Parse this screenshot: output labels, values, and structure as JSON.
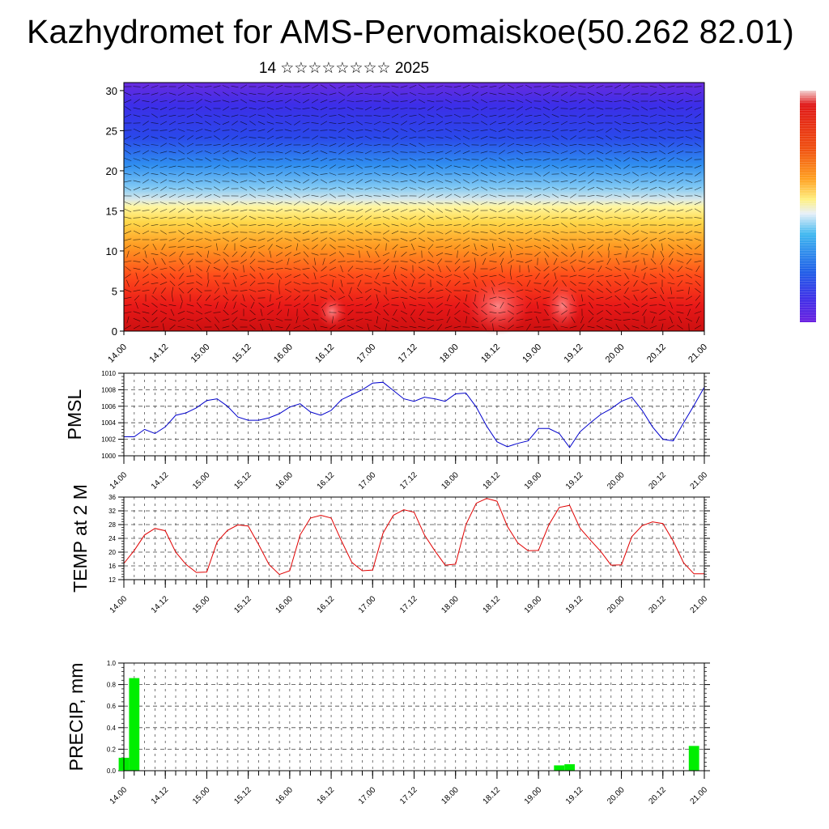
{
  "title": "Kazhydromet for AMS-Pervomaiskoe(50.262 82.01)",
  "subtitle": "14 ☆☆☆☆☆☆☆☆ 2025",
  "time_labels": [
    "14.00",
    "14.12",
    "15.00",
    "15.12",
    "16.00",
    "16.12",
    "17.00",
    "17.12",
    "18.00",
    "18.12",
    "19.00",
    "19.12",
    "20.00",
    "20.12",
    "21.00"
  ],
  "chart_data": [
    {
      "type": "heatmap",
      "title": "",
      "xlabel": "",
      "ylabel": "",
      "x": [
        "14.00",
        "14.12",
        "15.00",
        "15.12",
        "16.00",
        "16.12",
        "17.00",
        "17.12",
        "18.00",
        "18.12",
        "19.00",
        "19.12",
        "20.00",
        "20.12",
        "21.00"
      ],
      "ylim": [
        0,
        31
      ],
      "yticks": [
        0,
        5,
        10,
        15,
        20,
        25,
        30
      ],
      "overlay": "wind barbs",
      "colorbar": "blue (top) to yellow to red (bottom)",
      "grid": false
    },
    {
      "type": "line",
      "ylabel": "PMSL",
      "color": "#0000cc",
      "ylim": [
        1000,
        1010
      ],
      "yticks": [
        1000,
        1002,
        1004,
        1006,
        1008,
        1010
      ],
      "x": [
        "14.00",
        "14.03",
        "14.06",
        "14.09",
        "14.12",
        "14.15",
        "14.18",
        "14.21",
        "15.00",
        "15.03",
        "15.06",
        "15.09",
        "15.12",
        "15.15",
        "15.18",
        "15.21",
        "16.00",
        "16.03",
        "16.06",
        "16.09",
        "16.12",
        "16.15",
        "16.18",
        "16.21",
        "17.00",
        "17.03",
        "17.06",
        "17.09",
        "17.12",
        "17.15",
        "17.18",
        "17.21",
        "18.00",
        "18.03",
        "18.06",
        "18.09",
        "18.12",
        "18.15",
        "18.18",
        "18.21",
        "19.00",
        "19.03",
        "19.06",
        "19.09",
        "19.12",
        "19.15",
        "19.18",
        "19.21",
        "20.00",
        "20.03",
        "20.06",
        "20.09",
        "20.12",
        "20.15",
        "20.18",
        "20.21",
        "21.00"
      ],
      "values": [
        1002.3,
        1002.3,
        1003.2,
        1002.7,
        1003.5,
        1004.9,
        1005.2,
        1005.8,
        1006.7,
        1006.9,
        1006.0,
        1004.7,
        1004.3,
        1004.3,
        1004.6,
        1005.1,
        1005.9,
        1006.3,
        1005.3,
        1004.9,
        1005.5,
        1006.8,
        1007.4,
        1008.0,
        1008.8,
        1008.9,
        1007.9,
        1006.9,
        1006.6,
        1007.1,
        1006.9,
        1006.6,
        1007.5,
        1007.6,
        1005.9,
        1003.6,
        1001.7,
        1001.1,
        1001.5,
        1001.8,
        1003.3,
        1003.3,
        1002.7,
        1001.0,
        1002.9,
        1004.0,
        1005.0,
        1005.7,
        1006.6,
        1007.1,
        1005.5,
        1003.5,
        1002.0,
        1001.8,
        1004.0,
        1006.1,
        1008.3
      ]
    },
    {
      "type": "line",
      "ylabel": "TEMP at 2 M",
      "color": "#e00000",
      "ylim": [
        12,
        36
      ],
      "yticks": [
        12,
        16,
        20,
        24,
        28,
        32,
        36
      ],
      "x": [
        "14.00",
        "14.03",
        "14.06",
        "14.09",
        "14.12",
        "14.15",
        "14.18",
        "14.21",
        "15.00",
        "15.03",
        "15.06",
        "15.09",
        "15.12",
        "15.15",
        "15.18",
        "15.21",
        "16.00",
        "16.03",
        "16.06",
        "16.09",
        "16.12",
        "16.15",
        "16.18",
        "16.21",
        "17.00",
        "17.03",
        "17.06",
        "17.09",
        "17.12",
        "17.15",
        "17.18",
        "17.21",
        "18.00",
        "18.03",
        "18.06",
        "18.09",
        "18.12",
        "18.15",
        "18.18",
        "18.21",
        "19.00",
        "19.03",
        "19.06",
        "19.09",
        "19.12",
        "19.15",
        "19.18",
        "19.21",
        "20.00",
        "20.03",
        "20.06",
        "20.09",
        "20.12",
        "20.15",
        "20.18",
        "20.21",
        "21.00"
      ],
      "values": [
        16.7,
        20.5,
        25.0,
        26.9,
        26.2,
        20.0,
        16.4,
        14.1,
        14.2,
        23.0,
        26.3,
        27.9,
        27.6,
        22.2,
        16.4,
        13.5,
        14.6,
        25.0,
        29.9,
        30.7,
        29.9,
        23.2,
        17.0,
        14.6,
        14.8,
        25.5,
        30.7,
        32.3,
        31.6,
        25.0,
        20.4,
        16.2,
        16.5,
        28.0,
        34.2,
        35.6,
        34.8,
        27.5,
        22.7,
        20.4,
        20.5,
        27.9,
        33.0,
        33.6,
        27.0,
        23.5,
        20.2,
        16.2,
        16.3,
        24.5,
        27.7,
        28.8,
        28.3,
        23.2,
        16.9,
        13.7,
        13.7
      ]
    },
    {
      "type": "bar",
      "ylabel": "PRECIP, mm",
      "color": "#00ee00",
      "ylim": [
        0,
        1.0
      ],
      "yticks": [
        0.0,
        0.2,
        0.4,
        0.6,
        0.8,
        1.0
      ],
      "x": [
        "14.00",
        "14.03",
        "14.06",
        "14.09",
        "14.12",
        "14.15",
        "14.18",
        "14.21",
        "15.00",
        "15.03",
        "15.06",
        "15.09",
        "15.12",
        "15.15",
        "15.18",
        "15.21",
        "16.00",
        "16.03",
        "16.06",
        "16.09",
        "16.12",
        "16.15",
        "16.18",
        "16.21",
        "17.00",
        "17.03",
        "17.06",
        "17.09",
        "17.12",
        "17.15",
        "17.18",
        "17.21",
        "18.00",
        "18.03",
        "18.06",
        "18.09",
        "18.12",
        "18.15",
        "18.18",
        "18.21",
        "19.00",
        "19.03",
        "19.06",
        "19.09",
        "19.12",
        "19.15",
        "19.18",
        "19.21",
        "20.00",
        "20.03",
        "20.06",
        "20.09",
        "20.12",
        "20.15",
        "20.18",
        "20.21",
        "21.00"
      ],
      "values": [
        0.12,
        0.86,
        0,
        0,
        0,
        0,
        0,
        0,
        0,
        0,
        0,
        0,
        0,
        0,
        0,
        0,
        0,
        0,
        0,
        0,
        0,
        0,
        0,
        0,
        0,
        0,
        0,
        0,
        0,
        0,
        0,
        0,
        0,
        0,
        0,
        0,
        0,
        0,
        0,
        0,
        0,
        0,
        0.05,
        0.06,
        0,
        0,
        0,
        0,
        0,
        0,
        0,
        0,
        0,
        0,
        0,
        0.23,
        0
      ]
    }
  ]
}
